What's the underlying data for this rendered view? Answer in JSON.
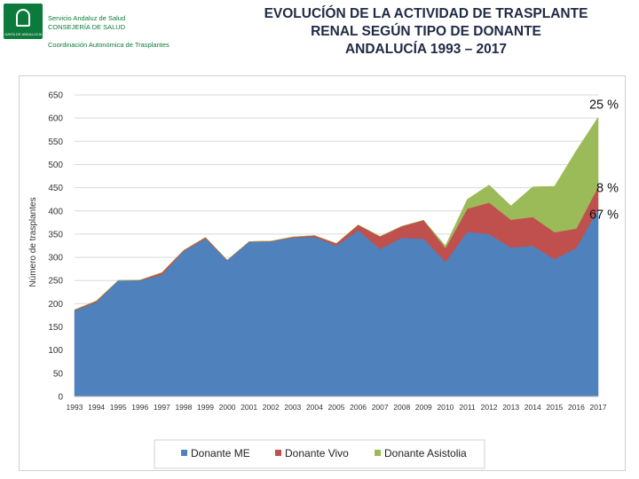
{
  "header": {
    "logo": {
      "emblem_text": "JUNTA DE ANDALUCIA",
      "org_line1": "Servicio Andaluz de Salud",
      "org_line2": "CONSEJERÍA DE SALUD",
      "org_line3": "Coordinación Autonómica de Trasplantes"
    },
    "title_lines": [
      "EVOLUCÍÓN DE LA ACTIVIDAD DE TRASPLANTE",
      "RENAL SEGÚN TIPO DE DONANTE",
      "ANDALUCÍA 1993 – 2017"
    ]
  },
  "chart_data": {
    "type": "area",
    "stacked": true,
    "title": "",
    "xlabel": "",
    "ylabel": "Número de trasplantes",
    "ylim": [
      0,
      650
    ],
    "ytick_step": 50,
    "grid": true,
    "legend_position": "bottom",
    "categories": [
      "1993",
      "1994",
      "1995",
      "1996",
      "1997",
      "1998",
      "1999",
      "2000",
      "2001",
      "2002",
      "2003",
      "2004",
      "2005",
      "2006",
      "2007",
      "2008",
      "2009",
      "2010",
      "2011",
      "2012",
      "2013",
      "2014",
      "2015",
      "2016",
      "2017"
    ],
    "series": [
      {
        "name": "Donante ME",
        "color": "#4f81bd",
        "values": [
          185,
          203,
          250,
          250,
          262,
          313,
          340,
          293,
          333,
          334,
          342,
          344,
          325,
          358,
          318,
          342,
          340,
          290,
          355,
          350,
          321,
          325,
          296,
          320,
          404
        ]
      },
      {
        "name": "Donante Vivo",
        "color": "#c0504d",
        "values": [
          2,
          3,
          0,
          1,
          5,
          2,
          3,
          1,
          1,
          1,
          2,
          3,
          5,
          12,
          27,
          25,
          40,
          30,
          50,
          68,
          60,
          62,
          58,
          42,
          48
        ]
      },
      {
        "name": "Donante Asistolia",
        "color": "#9bbb59",
        "values": [
          0,
          0,
          0,
          0,
          0,
          0,
          0,
          0,
          0,
          0,
          0,
          0,
          0,
          0,
          0,
          0,
          0,
          5,
          20,
          38,
          30,
          65,
          99,
          168,
          150
        ]
      }
    ],
    "annotations": [
      {
        "text": "25 %",
        "at_value": 630
      },
      {
        "text": "8 %",
        "at_value": 450
      },
      {
        "text": "67 %",
        "at_value": 393
      }
    ]
  }
}
